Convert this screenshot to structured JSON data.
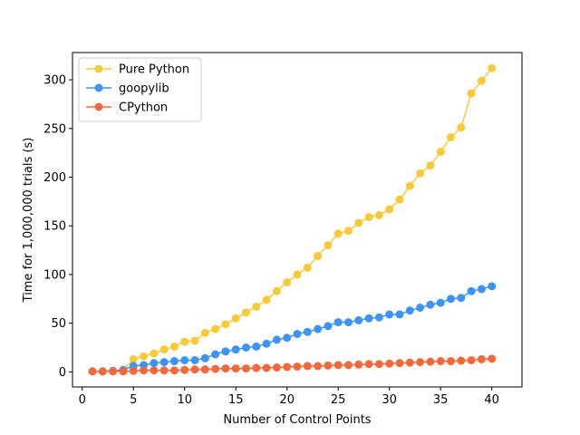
{
  "chart_data": {
    "type": "line",
    "xlabel": "Number of Control Points",
    "ylabel": "Time for 1,000,000 trials (s)",
    "xlim": [
      -0.95,
      42.95
    ],
    "ylim": [
      -15.5,
      328
    ],
    "xticks": [
      0,
      5,
      10,
      15,
      20,
      25,
      30,
      35,
      40
    ],
    "yticks": [
      0,
      50,
      100,
      150,
      200,
      250,
      300
    ],
    "grid": false,
    "legend_position": "upper-left",
    "x": [
      1,
      2,
      3,
      4,
      5,
      6,
      7,
      8,
      9,
      10,
      11,
      12,
      13,
      14,
      15,
      16,
      17,
      18,
      19,
      20,
      21,
      22,
      23,
      24,
      25,
      26,
      27,
      28,
      29,
      30,
      31,
      32,
      33,
      34,
      35,
      36,
      37,
      38,
      39,
      40
    ],
    "series": [
      {
        "name": "Pure Python",
        "color": "#f7cb38",
        "values": [
          0.5,
          0.5,
          1,
          2,
          13,
          16,
          19,
          23,
          26,
          31,
          32,
          40,
          44,
          49,
          55,
          61,
          67,
          74,
          83,
          92,
          100,
          107,
          119,
          130,
          142,
          145,
          153,
          159,
          161,
          167,
          177,
          191,
          204,
          212,
          226,
          241,
          251,
          286,
          299,
          312
        ]
      },
      {
        "name": "goopylib",
        "color": "#3d94f6",
        "values": [
          0.5,
          0.5,
          1,
          2,
          6,
          7,
          9,
          10,
          11,
          12,
          12,
          14,
          18,
          21,
          23,
          25,
          26,
          29,
          33,
          35,
          39,
          41,
          44,
          47,
          51,
          51,
          53,
          55,
          56,
          59,
          59,
          63,
          66,
          69,
          71,
          75,
          76,
          83,
          85,
          88
        ]
      },
      {
        "name": "CPython",
        "color": "#f5683a",
        "values": [
          0.5,
          0.5,
          0.5,
          0.5,
          1,
          1.5,
          1.5,
          1.5,
          1.5,
          2,
          2.5,
          2.5,
          3,
          3.5,
          3.5,
          3.5,
          4,
          4,
          4.5,
          5,
          5.5,
          6,
          6,
          6.5,
          7,
          7,
          7.5,
          8,
          8,
          8.5,
          9,
          9.5,
          10,
          10.5,
          11,
          11,
          11.5,
          12,
          13,
          13.5
        ]
      }
    ]
  }
}
